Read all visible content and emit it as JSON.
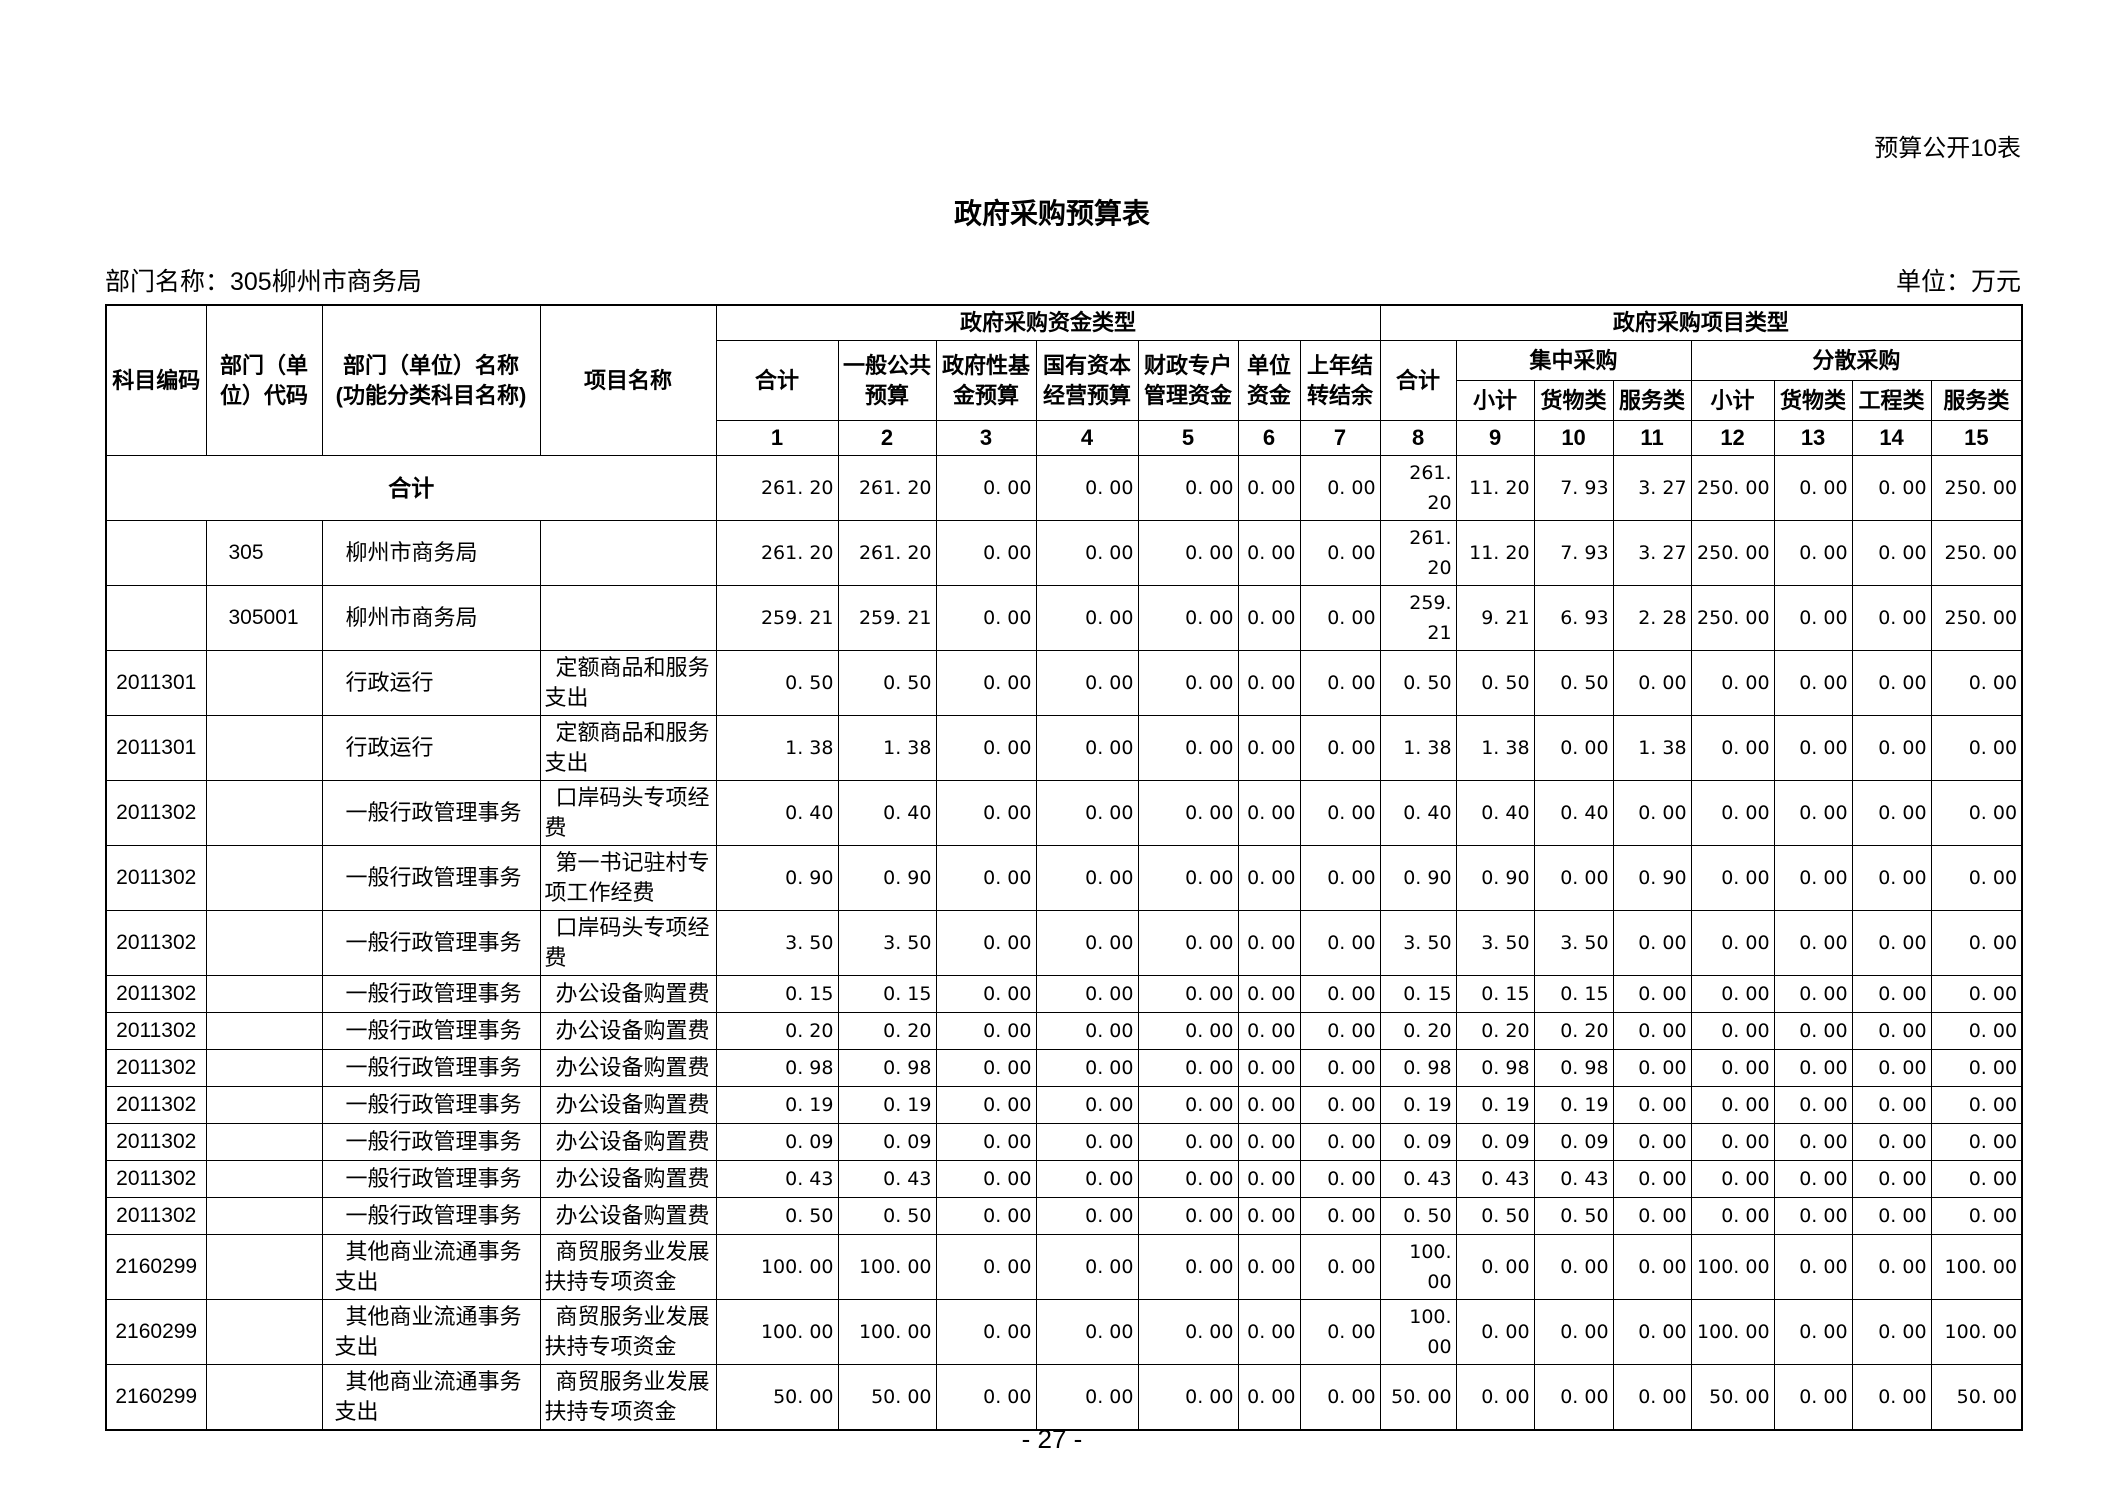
{
  "page": {
    "table_label": "预算公开10表",
    "title": "政府采购预算表",
    "department_line": "部门名称：305柳州市商务局",
    "unit_line": "单位：万元",
    "page_number": "- 27 -"
  },
  "table": {
    "header": {
      "subject_code": "科目编码",
      "dept_code": "部门（单位）代码",
      "dept_name": "部门（单位）名称\n(功能分类科目名称)",
      "project_name": "项目名称",
      "fund_group": "政府采购资金类型",
      "project_group": "政府采购项目类型",
      "fund_cols": [
        "合计",
        "一般公共预算",
        "政府性基金预算",
        "国有资本经营预算",
        "财政专户管理资金",
        "单位资金",
        "上年结转结余"
      ],
      "project_total": "合计",
      "centralized": "集中采购",
      "decentralized": "分散采购",
      "cent_cols": [
        "小计",
        "货物类",
        "服务类"
      ],
      "dec_cols": [
        "小计",
        "货物类",
        "工程类",
        "服务类"
      ],
      "col_numbers": [
        "1",
        "2",
        "3",
        "4",
        "5",
        "6",
        "7",
        "8",
        "9",
        "10",
        "11",
        "12",
        "13",
        "14",
        "15"
      ]
    },
    "rows": [
      {
        "merged": true,
        "label": "合计",
        "values": [
          "261. 20",
          "261. 20",
          "0. 00",
          "0. 00",
          "0. 00",
          "0. 00",
          "0. 00",
          "261. 20",
          "11. 20",
          "7. 93",
          "3. 27",
          "250. 00",
          "0. 00",
          "0. 00",
          "250. 00"
        ]
      },
      {
        "code": "",
        "dept": "305",
        "name": "柳州市商务局",
        "proj": "",
        "values": [
          "261. 20",
          "261. 20",
          "0. 00",
          "0. 00",
          "0. 00",
          "0. 00",
          "0. 00",
          "261. 20",
          "11. 20",
          "7. 93",
          "3. 27",
          "250. 00",
          "0. 00",
          "0. 00",
          "250. 00"
        ]
      },
      {
        "code": "",
        "dept": "305001",
        "name": "柳州市商务局",
        "proj": "",
        "values": [
          "259. 21",
          "259. 21",
          "0. 00",
          "0. 00",
          "0. 00",
          "0. 00",
          "0. 00",
          "259. 21",
          "9. 21",
          "6. 93",
          "2. 28",
          "250. 00",
          "0. 00",
          "0. 00",
          "250. 00"
        ]
      },
      {
        "code": "2011301",
        "dept": "",
        "name": "行政运行",
        "proj": "定额商品和服务支出",
        "values": [
          "0. 50",
          "0. 50",
          "0. 00",
          "0. 00",
          "0. 00",
          "0. 00",
          "0. 00",
          "0. 50",
          "0. 50",
          "0. 50",
          "0. 00",
          "0. 00",
          "0. 00",
          "0. 00",
          "0. 00"
        ]
      },
      {
        "code": "2011301",
        "dept": "",
        "name": "行政运行",
        "proj": "定额商品和服务支出",
        "values": [
          "1. 38",
          "1. 38",
          "0. 00",
          "0. 00",
          "0. 00",
          "0. 00",
          "0. 00",
          "1. 38",
          "1. 38",
          "0. 00",
          "1. 38",
          "0. 00",
          "0. 00",
          "0. 00",
          "0. 00"
        ]
      },
      {
        "code": "2011302",
        "dept": "",
        "name": "一般行政管理事务",
        "proj": "口岸码头专项经费",
        "values": [
          "0. 40",
          "0. 40",
          "0. 00",
          "0. 00",
          "0. 00",
          "0. 00",
          "0. 00",
          "0. 40",
          "0. 40",
          "0. 40",
          "0. 00",
          "0. 00",
          "0. 00",
          "0. 00",
          "0. 00"
        ]
      },
      {
        "code": "2011302",
        "dept": "",
        "name": "一般行政管理事务",
        "proj": "第一书记驻村专项工作经费",
        "values": [
          "0. 90",
          "0. 90",
          "0. 00",
          "0. 00",
          "0. 00",
          "0. 00",
          "0. 00",
          "0. 90",
          "0. 90",
          "0. 00",
          "0. 90",
          "0. 00",
          "0. 00",
          "0. 00",
          "0. 00"
        ]
      },
      {
        "code": "2011302",
        "dept": "",
        "name": "一般行政管理事务",
        "proj": "口岸码头专项经费",
        "values": [
          "3. 50",
          "3. 50",
          "0. 00",
          "0. 00",
          "0. 00",
          "0. 00",
          "0. 00",
          "3. 50",
          "3. 50",
          "3. 50",
          "0. 00",
          "0. 00",
          "0. 00",
          "0. 00",
          "0. 00"
        ]
      },
      {
        "code": "2011302",
        "dept": "",
        "name": "一般行政管理事务",
        "proj": "办公设备购置费",
        "values": [
          "0. 15",
          "0. 15",
          "0. 00",
          "0. 00",
          "0. 00",
          "0. 00",
          "0. 00",
          "0. 15",
          "0. 15",
          "0. 15",
          "0. 00",
          "0. 00",
          "0. 00",
          "0. 00",
          "0. 00"
        ]
      },
      {
        "code": "2011302",
        "dept": "",
        "name": "一般行政管理事务",
        "proj": "办公设备购置费",
        "values": [
          "0. 20",
          "0. 20",
          "0. 00",
          "0. 00",
          "0. 00",
          "0. 00",
          "0. 00",
          "0. 20",
          "0. 20",
          "0. 20",
          "0. 00",
          "0. 00",
          "0. 00",
          "0. 00",
          "0. 00"
        ]
      },
      {
        "code": "2011302",
        "dept": "",
        "name": "一般行政管理事务",
        "proj": "办公设备购置费",
        "values": [
          "0. 98",
          "0. 98",
          "0. 00",
          "0. 00",
          "0. 00",
          "0. 00",
          "0. 00",
          "0. 98",
          "0. 98",
          "0. 98",
          "0. 00",
          "0. 00",
          "0. 00",
          "0. 00",
          "0. 00"
        ]
      },
      {
        "code": "2011302",
        "dept": "",
        "name": "一般行政管理事务",
        "proj": "办公设备购置费",
        "values": [
          "0. 19",
          "0. 19",
          "0. 00",
          "0. 00",
          "0. 00",
          "0. 00",
          "0. 00",
          "0. 19",
          "0. 19",
          "0. 19",
          "0. 00",
          "0. 00",
          "0. 00",
          "0. 00",
          "0. 00"
        ]
      },
      {
        "code": "2011302",
        "dept": "",
        "name": "一般行政管理事务",
        "proj": "办公设备购置费",
        "values": [
          "0. 09",
          "0. 09",
          "0. 00",
          "0. 00",
          "0. 00",
          "0. 00",
          "0. 00",
          "0. 09",
          "0. 09",
          "0. 09",
          "0. 00",
          "0. 00",
          "0. 00",
          "0. 00",
          "0. 00"
        ]
      },
      {
        "code": "2011302",
        "dept": "",
        "name": "一般行政管理事务",
        "proj": "办公设备购置费",
        "values": [
          "0. 43",
          "0. 43",
          "0. 00",
          "0. 00",
          "0. 00",
          "0. 00",
          "0. 00",
          "0. 43",
          "0. 43",
          "0. 43",
          "0. 00",
          "0. 00",
          "0. 00",
          "0. 00",
          "0. 00"
        ]
      },
      {
        "code": "2011302",
        "dept": "",
        "name": "一般行政管理事务",
        "proj": "办公设备购置费",
        "values": [
          "0. 50",
          "0. 50",
          "0. 00",
          "0. 00",
          "0. 00",
          "0. 00",
          "0. 00",
          "0. 50",
          "0. 50",
          "0. 50",
          "0. 00",
          "0. 00",
          "0. 00",
          "0. 00",
          "0. 00"
        ]
      },
      {
        "code": "2160299",
        "dept": "",
        "name": "其他商业流通事务支出",
        "proj": "商贸服务业发展扶持专项资金",
        "values": [
          "100. 00",
          "100. 00",
          "0. 00",
          "0. 00",
          "0. 00",
          "0. 00",
          "0. 00",
          "100. 00",
          "0. 00",
          "0. 00",
          "0. 00",
          "100. 00",
          "0. 00",
          "0. 00",
          "100. 00"
        ]
      },
      {
        "code": "2160299",
        "dept": "",
        "name": "其他商业流通事务支出",
        "proj": "商贸服务业发展扶持专项资金",
        "values": [
          "100. 00",
          "100. 00",
          "0. 00",
          "0. 00",
          "0. 00",
          "0. 00",
          "0. 00",
          "100. 00",
          "0. 00",
          "0. 00",
          "0. 00",
          "100. 00",
          "0. 00",
          "0. 00",
          "100. 00"
        ]
      },
      {
        "code": "2160299",
        "dept": "",
        "name": "其他商业流通事务支出",
        "proj": "商贸服务业发展扶持专项资金",
        "values": [
          "50. 00",
          "50. 00",
          "0. 00",
          "0. 00",
          "0. 00",
          "0. 00",
          "0. 00",
          "50. 00",
          "0. 00",
          "0. 00",
          "0. 00",
          "50. 00",
          "0. 00",
          "0. 00",
          "50. 00"
        ]
      }
    ]
  }
}
